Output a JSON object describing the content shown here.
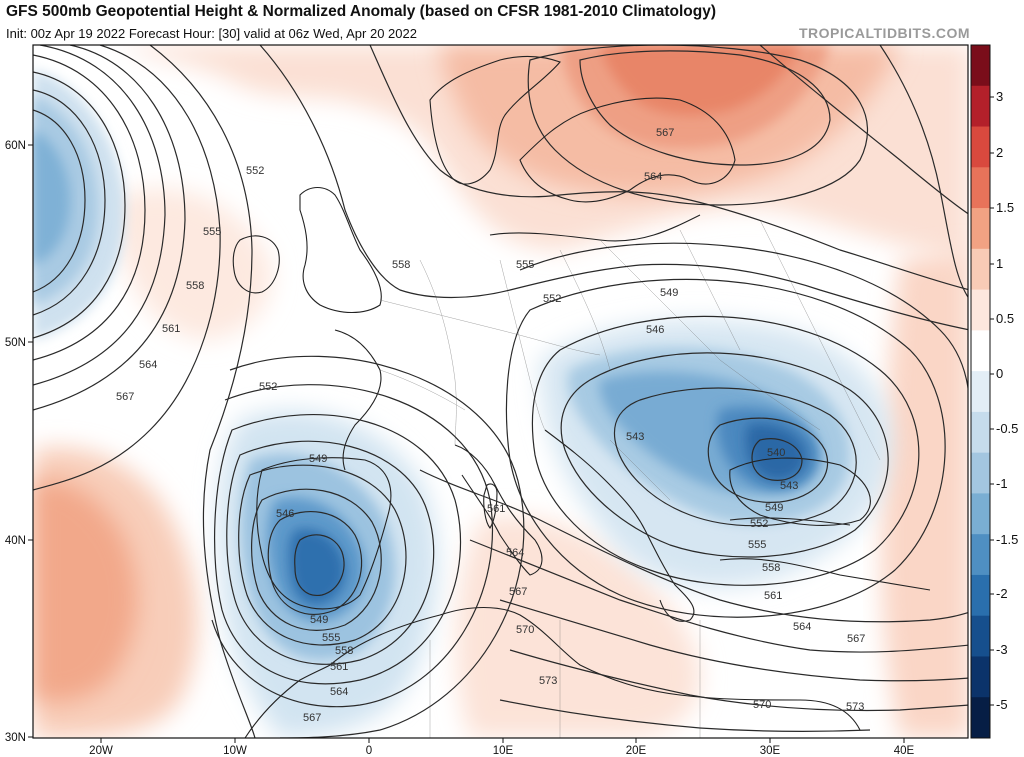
{
  "header": {
    "title": "GFS 500mb Geopotential Height & Normalized Anomaly (based on CFSR 1981-2010 Climatology)",
    "subtitle": "Init: 00z Apr 19 2022   Forecast Hour: [30]   valid at 06z Wed, Apr 20 2022",
    "brand": "TROPICALTIDBITS.COM"
  },
  "axes": {
    "lon_labels": [
      "20W",
      "10W",
      "0",
      "10E",
      "20E",
      "30E",
      "40E"
    ],
    "lat_labels": [
      "60N",
      "50N",
      "40N",
      "30N"
    ]
  },
  "colorbar": {
    "ticks": [
      "3",
      "2",
      "1.5",
      "1",
      "0.5",
      "0",
      "-0.5",
      "-1",
      "-1.5",
      "-2",
      "-3",
      "-5"
    ],
    "colors": [
      "#7a0d1a",
      "#b3202a",
      "#d9493e",
      "#e8735a",
      "#f2a283",
      "#f8cbb6",
      "#fde7de",
      "#ffffff",
      "#e3eef6",
      "#c6dcec",
      "#a3c6e0",
      "#7aaed3",
      "#4f8fc2",
      "#2a6fad",
      "#164f8d",
      "#0b336a",
      "#061e45"
    ]
  },
  "contours": {
    "labels": [
      "552",
      "555",
      "558",
      "561",
      "564",
      "567",
      "552",
      "549",
      "546",
      "549",
      "555",
      "558",
      "561",
      "564",
      "567",
      "558",
      "555",
      "552",
      "549",
      "546",
      "543",
      "540",
      "543",
      "549",
      "552",
      "555",
      "558",
      "561",
      "564",
      "567",
      "561",
      "564",
      "567",
      "570",
      "573",
      "570",
      "573",
      "564",
      "567"
    ]
  },
  "colors": {
    "positive_anomaly": "#f2a283",
    "negative_anomaly": "#4f8fc2",
    "contour": "#222222",
    "borders": "#333333"
  }
}
